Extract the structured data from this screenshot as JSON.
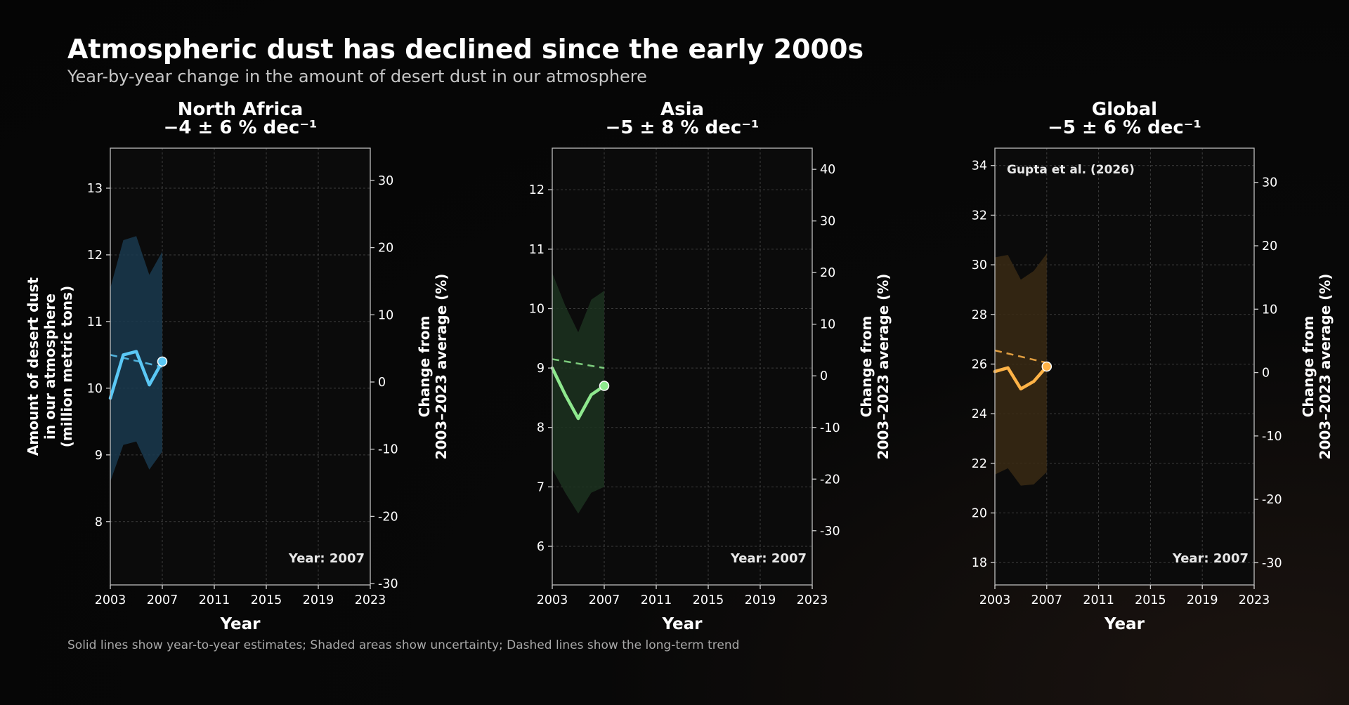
{
  "page": {
    "title": "Atmospheric dust has declined since the early 2000s",
    "subtitle": "Year-by-year change in the amount of desert dust in our atmosphere",
    "footnote": "Solid lines show year-to-year estimates; Shaded areas show uncertainty; Dashed lines show the long-term trend"
  },
  "chart_data": [
    {
      "type": "line",
      "title": "North Africa",
      "trend_label": "−4 ± 6 % dec⁻¹",
      "color": "#5bc8f5",
      "band_color": "#1a3a4f",
      "xlabel": "Year",
      "ylabel_left": [
        "Amount of desert dust",
        "in our atmosphere",
        "(million metric tons)"
      ],
      "ylabel_right": [
        "Change from",
        "2003–2023 average (%)"
      ],
      "xlim": [
        2003,
        2023
      ],
      "xticks": [
        2003,
        2007,
        2011,
        2015,
        2019,
        2023
      ],
      "ylim": [
        7.05,
        13.6
      ],
      "yticks": [
        8,
        9,
        10,
        11,
        12,
        13
      ],
      "ylim_right": [
        -30.2,
        34.8
      ],
      "yticks_right": [
        -30,
        -20,
        -10,
        0,
        10,
        20,
        30
      ],
      "x": [
        2003,
        2004,
        2005,
        2006,
        2007
      ],
      "values": [
        9.85,
        10.5,
        10.55,
        10.05,
        10.4
      ],
      "band_upper": [
        11.5,
        12.22,
        12.28,
        11.7,
        12.05
      ],
      "band_lower": [
        8.6,
        9.15,
        9.2,
        8.78,
        9.05
      ],
      "trend_x": [
        2003,
        2007
      ],
      "trend_y": [
        10.5,
        10.32
      ],
      "year_label": "Year: 2007",
      "grid": true
    },
    {
      "type": "line",
      "title": "Asia",
      "trend_label": "−5 ± 8 % dec⁻¹",
      "color": "#8ee88e",
      "band_color": "#1c3320",
      "xlabel": "Year",
      "ylabel_right": [
        "Change from",
        "2003–2023 average (%)"
      ],
      "xlim": [
        2003,
        2023
      ],
      "xticks": [
        2003,
        2007,
        2011,
        2015,
        2019,
        2023
      ],
      "ylim": [
        5.35,
        12.7
      ],
      "yticks": [
        6,
        7,
        8,
        9,
        10,
        11,
        12
      ],
      "ylim_right": [
        -40.5,
        44.1
      ],
      "yticks_right": [
        -30,
        -20,
        -10,
        0,
        10,
        20,
        30,
        40
      ],
      "x": [
        2003,
        2004,
        2005,
        2006,
        2007
      ],
      "values": [
        9.0,
        8.55,
        8.15,
        8.55,
        8.7
      ],
      "band_upper": [
        10.6,
        10.05,
        9.6,
        10.15,
        10.3
      ],
      "band_lower": [
        7.3,
        6.9,
        6.55,
        6.9,
        7.0
      ],
      "trend_x": [
        2003,
        2007
      ],
      "trend_y": [
        9.15,
        9.0
      ],
      "year_label": "Year: 2007",
      "grid": true
    },
    {
      "type": "line",
      "title": "Global",
      "trend_label": "−5 ± 6 % dec⁻¹",
      "color": "#ffb347",
      "band_color": "#3a2a14",
      "xlabel": "Year",
      "ylabel_right": [
        "Change from",
        "2003–2023 average (%)"
      ],
      "xlim": [
        2003,
        2023
      ],
      "xticks": [
        2003,
        2007,
        2011,
        2015,
        2019,
        2023
      ],
      "ylim": [
        17.1,
        34.7
      ],
      "yticks": [
        18,
        20,
        22,
        24,
        26,
        28,
        30,
        32,
        34
      ],
      "ylim_right": [
        -33.5,
        35.4
      ],
      "yticks_right": [
        -30,
        -20,
        -10,
        0,
        10,
        20,
        30
      ],
      "x": [
        2003,
        2004,
        2005,
        2006,
        2007
      ],
      "values": [
        25.7,
        25.85,
        25.0,
        25.3,
        25.9
      ],
      "band_upper": [
        30.3,
        30.4,
        29.4,
        29.75,
        30.45
      ],
      "band_lower": [
        21.55,
        21.8,
        21.1,
        21.15,
        21.65
      ],
      "trend_x": [
        2003,
        2007
      ],
      "trend_y": [
        26.55,
        26.05
      ],
      "year_label": "Year: 2007",
      "source_label": "Gupta et al. (2026)",
      "grid": true
    }
  ]
}
